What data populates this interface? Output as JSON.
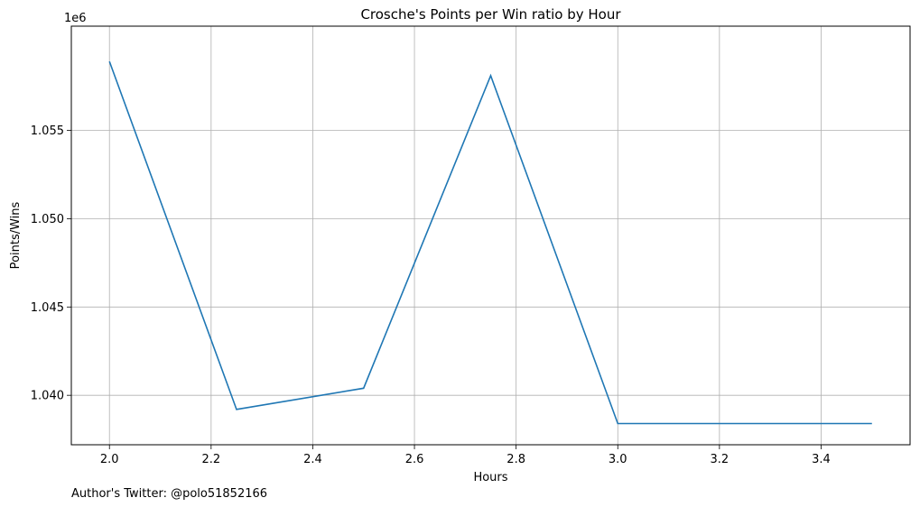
{
  "chart_data": {
    "type": "line",
    "title": "Crosche's Points per Win ratio by Hour",
    "xlabel": "Hours",
    "ylabel": "Points/Wins",
    "y_offset_label": "1e6",
    "xlim": [
      1.925,
      3.575
    ],
    "ylim": [
      1.0372,
      1.0609
    ],
    "x_ticks": [
      2.0,
      2.2,
      2.4,
      2.6,
      2.8,
      3.0,
      3.2,
      3.4
    ],
    "x_tick_labels": [
      "2.0",
      "2.2",
      "2.4",
      "2.6",
      "2.8",
      "3.0",
      "3.2",
      "3.4"
    ],
    "y_ticks": [
      1.04,
      1.045,
      1.05,
      1.055
    ],
    "y_tick_labels": [
      "1.040",
      "1.045",
      "1.050",
      "1.055"
    ],
    "grid": true,
    "series": [
      {
        "color": "#1f77b4",
        "x": [
          2.0,
          2.25,
          2.5,
          2.75,
          3.0,
          3.25,
          3.5
        ],
        "y": [
          1.0589,
          1.0392,
          1.0404,
          1.0581,
          1.0384,
          1.0384,
          1.0384
        ]
      }
    ]
  },
  "footer": {
    "text": "Author's Twitter: @polo51852166"
  }
}
